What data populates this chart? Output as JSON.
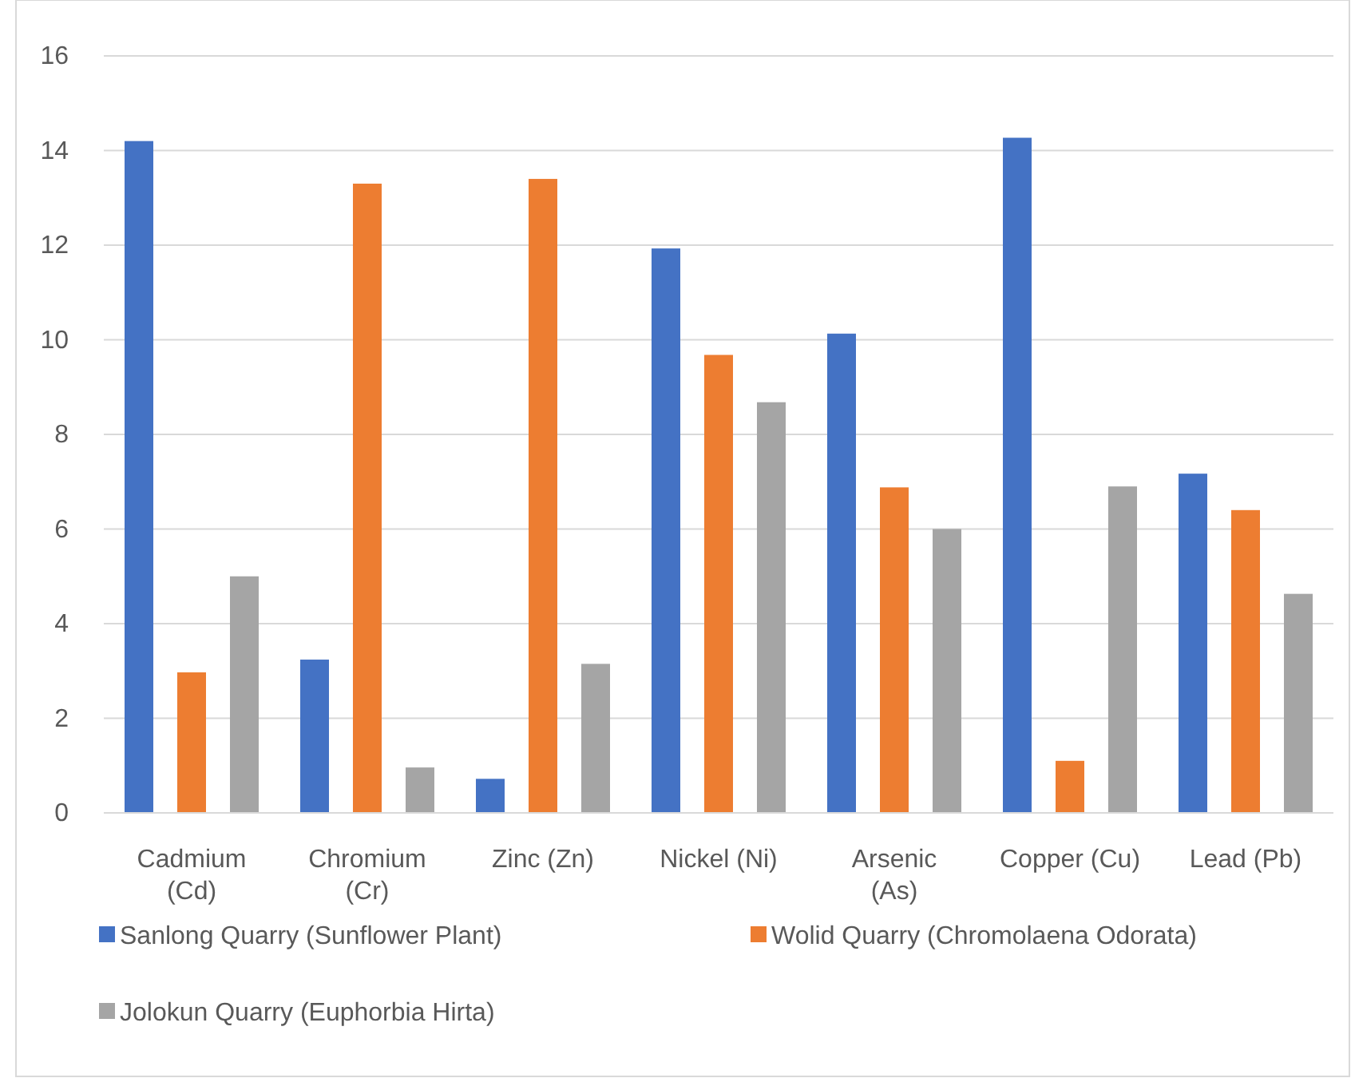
{
  "chart_data": {
    "type": "bar",
    "categories": [
      "Cadmium (Cd)",
      "Chromium (Cr)",
      "Zinc (Zn)",
      "Nickel (Ni)",
      "Arsenic (As)",
      "Copper (Cu)",
      "Lead (Pb)"
    ],
    "series": [
      {
        "name": "Sanlong Quarry (Sunflower Plant)",
        "color": "#4472c4",
        "values": [
          14.2,
          3.24,
          0.72,
          11.93,
          10.13,
          14.27,
          7.17
        ]
      },
      {
        "name": "Wolid Quarry (Chromolaena Odorata)",
        "color": "#ed7d31",
        "values": [
          2.97,
          13.3,
          13.4,
          9.68,
          6.88,
          1.1,
          6.4
        ]
      },
      {
        "name": "Jolokun Quarry (Euphorbia Hirta)",
        "color": "#a5a5a5",
        "values": [
          5.0,
          0.96,
          3.15,
          8.68,
          6.0,
          6.9,
          4.63
        ]
      }
    ],
    "ylim": [
      0,
      16
    ],
    "yticks": [
      0,
      2,
      4,
      6,
      8,
      10,
      12,
      14,
      16
    ],
    "grid": "y",
    "legend": "bottom"
  }
}
